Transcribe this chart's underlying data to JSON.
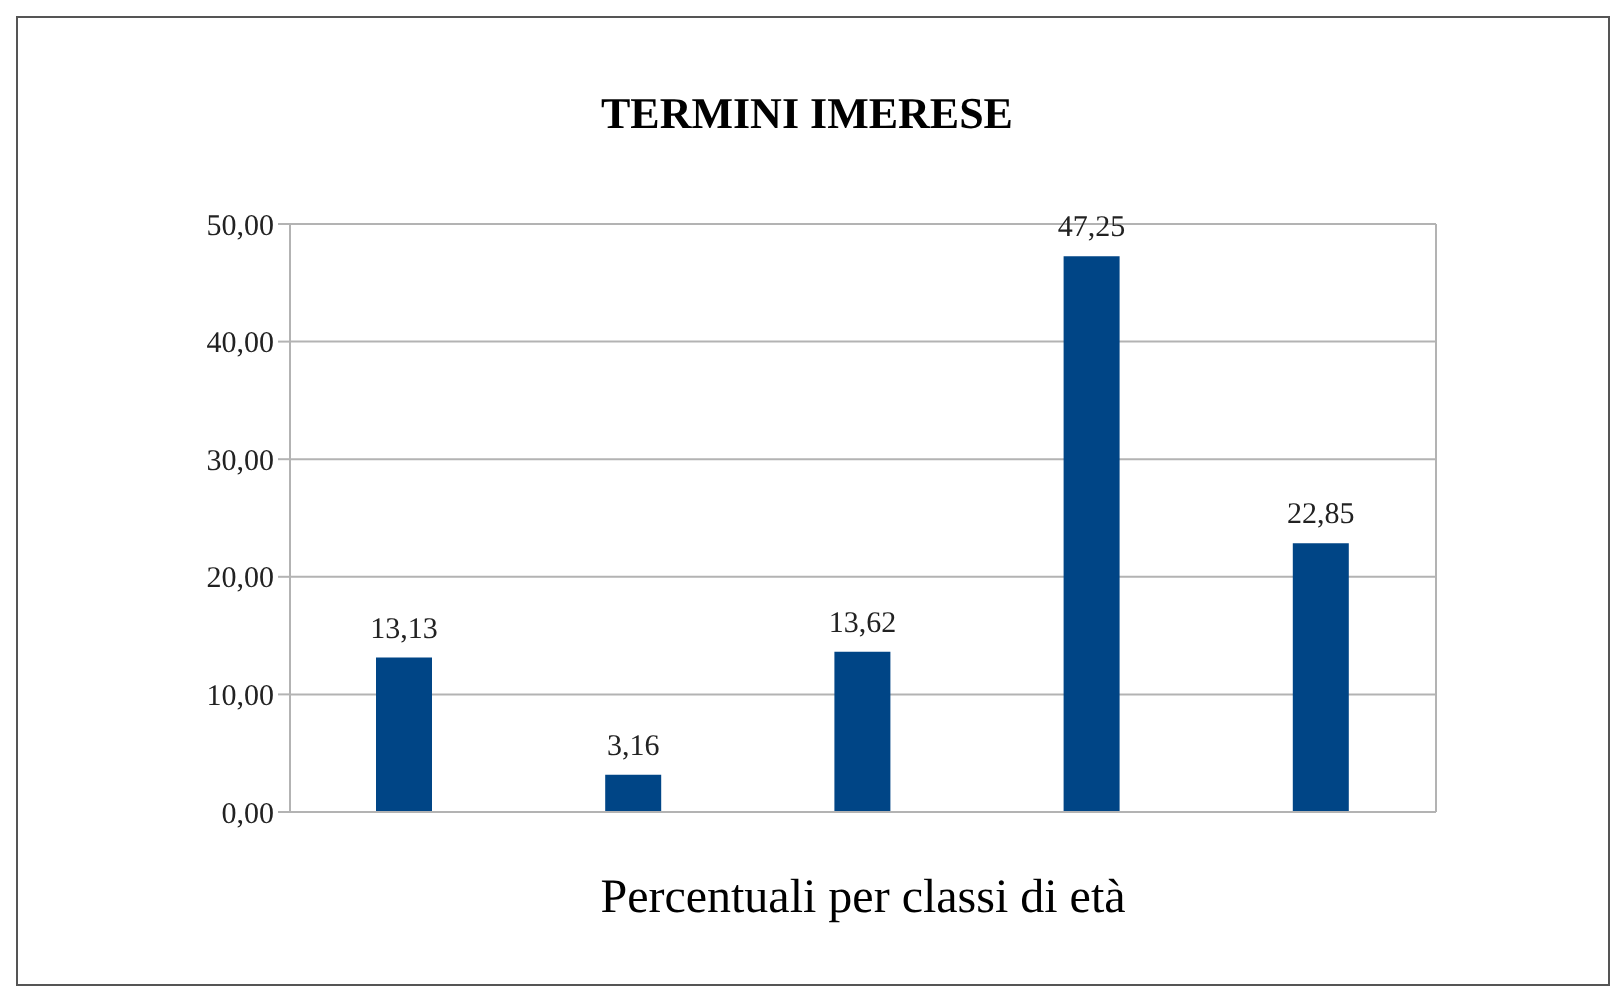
{
  "chart_data": {
    "type": "bar",
    "title": "TERMINI IMERESE",
    "xlabel": "Percentuali per classi di età",
    "categories": [
      null,
      null,
      null,
      null,
      null
    ],
    "values": [
      13.13,
      3.16,
      13.62,
      47.25,
      22.85
    ],
    "value_labels": [
      "13,13",
      "3,16",
      "13,62",
      "47,25",
      "22,85"
    ],
    "color": "#004586",
    "ylim": [
      0,
      50
    ],
    "yticks": [
      {
        "value": 0,
        "label": "0,00"
      },
      {
        "value": 10,
        "label": "10,00"
      },
      {
        "value": 20,
        "label": "20,00"
      },
      {
        "value": 30,
        "label": "30,00"
      },
      {
        "value": 40,
        "label": "40,00"
      },
      {
        "value": 50,
        "label": "50,00"
      }
    ],
    "grid": "y"
  }
}
